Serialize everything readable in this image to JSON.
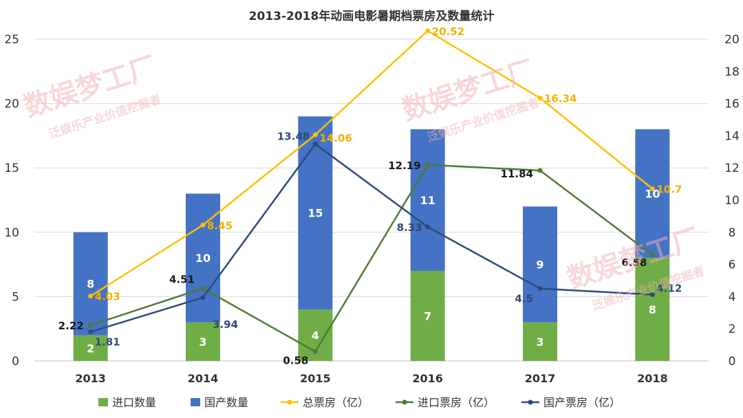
{
  "chart_data": {
    "type": "bar+line",
    "title": "2013-2018年动画电影暑期档票房及数量统计",
    "categories": [
      "2013",
      "2014",
      "2015",
      "2016",
      "2017",
      "2018"
    ],
    "left_axis": {
      "ylim": [
        0,
        25
      ],
      "ticks": [
        "0",
        "5",
        "10",
        "15",
        "20",
        "25"
      ]
    },
    "right_axis": {
      "ylim": [
        0,
        20
      ],
      "ticks": [
        "0",
        "2",
        "4",
        "6",
        "8",
        "10",
        "12",
        "14",
        "16",
        "18",
        "20"
      ]
    },
    "bar_series": [
      {
        "name": "进口数量",
        "color": "#70ad47",
        "values": [
          2,
          3,
          4,
          7,
          3,
          8
        ],
        "labels": [
          "2",
          "3",
          "4",
          "7",
          "3",
          "8"
        ]
      },
      {
        "name": "国产数量",
        "color": "#4472c4",
        "values": [
          8,
          10,
          15,
          11,
          9,
          10
        ],
        "labels": [
          "8",
          "10",
          "15",
          "11",
          "9",
          "10"
        ]
      }
    ],
    "line_series": [
      {
        "name": "总票房（亿）",
        "color": "#ffc000",
        "label_color": "#f0b400",
        "values": [
          4.03,
          8.45,
          14.06,
          20.52,
          16.34,
          10.7
        ],
        "labels": [
          "4.03",
          "8.45",
          "14.06",
          "20.52",
          "16.34",
          "10.7"
        ]
      },
      {
        "name": "进口票房（亿）",
        "color": "#4e7a36",
        "label_color": "#1a1a1a",
        "values": [
          2.22,
          4.51,
          0.58,
          12.19,
          11.84,
          6.58
        ],
        "labels": [
          "2.22",
          "4.51",
          "0.58",
          "12.19",
          "11.84",
          "6.58"
        ]
      },
      {
        "name": "国产票房（亿）",
        "color": "#2e4a7a",
        "label_color": "#2e4a7a",
        "values": [
          1.81,
          3.94,
          13.48,
          8.33,
          4.5,
          4.12
        ],
        "labels": [
          "1.81",
          "3.94",
          "13.48",
          "8.33",
          "4.5",
          "4.12"
        ]
      }
    ],
    "grid": true,
    "legend_position": "bottom",
    "watermark": {
      "main": "数娱梦工厂",
      "sub": "泛娱乐产业价值挖掘者"
    }
  }
}
